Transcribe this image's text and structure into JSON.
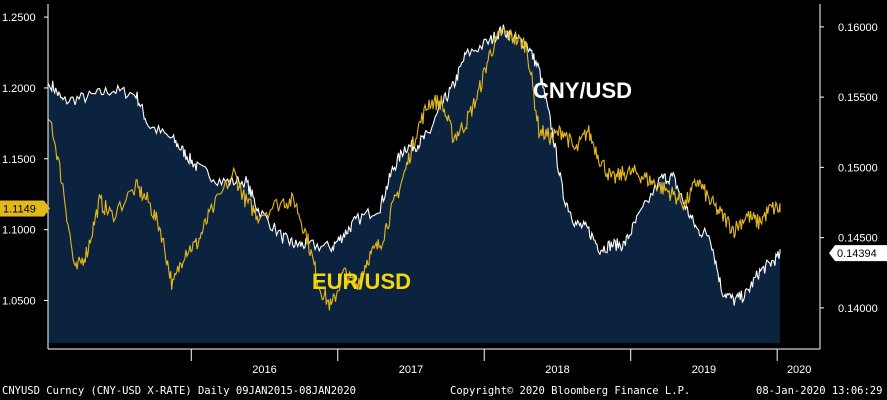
{
  "chart_data": {
    "type": "area",
    "title": "",
    "x_tick_labels": [
      "2016",
      "2017",
      "2018",
      "2019",
      "2020"
    ],
    "left_axis": {
      "ticks": [
        "1.2500",
        "1.2000",
        "1.1500",
        "1.1000",
        "1.0500"
      ],
      "ylim": [
        1.02,
        1.255
      ]
    },
    "right_axis": {
      "ticks": [
        "0.16000",
        "0.15500",
        "0.15000",
        "0.14500",
        "0.14000"
      ],
      "ylim": [
        0.1375,
        0.1612
      ]
    },
    "series": [
      {
        "name": "CNY/USD",
        "axis": "right",
        "style": "white line with navy fill",
        "color": "#ffffff",
        "fill": "#0c2340",
        "last_value_label": "0.14394",
        "points": [
          [
            "2015-01",
            0.156
          ],
          [
            "2015-02",
            0.1547
          ],
          [
            "2015-04",
            0.155
          ],
          [
            "2015-06",
            0.1555
          ],
          [
            "2015-08",
            0.1552
          ],
          [
            "2015-09",
            0.153
          ],
          [
            "2015-11",
            0.152
          ],
          [
            "2015-12",
            0.151
          ],
          [
            "2016-01",
            0.15
          ],
          [
            "2016-03",
            0.149
          ],
          [
            "2016-05",
            0.149
          ],
          [
            "2016-06",
            0.147
          ],
          [
            "2016-08",
            0.145
          ],
          [
            "2016-09",
            0.1445
          ],
          [
            "2016-10",
            0.1445
          ],
          [
            "2016-12",
            0.1443
          ],
          [
            "2017-01",
            0.1452
          ],
          [
            "2017-02",
            0.1462
          ],
          [
            "2017-04",
            0.1472
          ],
          [
            "2017-05",
            0.1498
          ],
          [
            "2017-06",
            0.1514
          ],
          [
            "2017-07",
            0.1516
          ],
          [
            "2017-08",
            0.1524
          ],
          [
            "2017-09",
            0.1544
          ],
          [
            "2017-10",
            0.1558
          ],
          [
            "2017-11",
            0.158
          ],
          [
            "2018-01",
            0.159
          ],
          [
            "2018-02",
            0.1598
          ],
          [
            "2018-03",
            0.1592
          ],
          [
            "2018-04",
            0.1588
          ],
          [
            "2018-05",
            0.157
          ],
          [
            "2018-06",
            0.153
          ],
          [
            "2018-07",
            0.148
          ],
          [
            "2018-08",
            0.146
          ],
          [
            "2018-09",
            0.1456
          ],
          [
            "2018-10",
            0.1442
          ],
          [
            "2018-11",
            0.1445
          ],
          [
            "2018-12",
            0.1445
          ],
          [
            "2019-01",
            0.1462
          ],
          [
            "2019-03",
            0.1492
          ],
          [
            "2019-04",
            0.1493
          ],
          [
            "2019-05",
            0.1472
          ],
          [
            "2019-06",
            0.1455
          ],
          [
            "2019-07",
            0.1452
          ],
          [
            "2019-08",
            0.1412
          ],
          [
            "2019-09",
            0.1405
          ],
          [
            "2019-10",
            0.141
          ],
          [
            "2019-11",
            0.1425
          ],
          [
            "2019-12",
            0.1432
          ],
          [
            "2020-01",
            0.1439
          ]
        ]
      },
      {
        "name": "EUR/USD",
        "axis": "left",
        "style": "yellow line",
        "color": "#e3b81a",
        "last_value_label": "1.1149",
        "points": [
          [
            "2015-01",
            1.178
          ],
          [
            "2015-02",
            1.131
          ],
          [
            "2015-03",
            1.07
          ],
          [
            "2015-04",
            1.085
          ],
          [
            "2015-05",
            1.12
          ],
          [
            "2015-06",
            1.11
          ],
          [
            "2015-08",
            1.13
          ],
          [
            "2015-09",
            1.12
          ],
          [
            "2015-10",
            1.1
          ],
          [
            "2015-11",
            1.06
          ],
          [
            "2015-12",
            1.085
          ],
          [
            "2016-01",
            1.09
          ],
          [
            "2016-02",
            1.11
          ],
          [
            "2016-04",
            1.14
          ],
          [
            "2016-05",
            1.12
          ],
          [
            "2016-06",
            1.11
          ],
          [
            "2016-08",
            1.12
          ],
          [
            "2016-09",
            1.12
          ],
          [
            "2016-10",
            1.095
          ],
          [
            "2016-11",
            1.06
          ],
          [
            "2016-12",
            1.045
          ],
          [
            "2017-01",
            1.07
          ],
          [
            "2017-02",
            1.06
          ],
          [
            "2017-03",
            1.08
          ],
          [
            "2017-04",
            1.09
          ],
          [
            "2017-05",
            1.115
          ],
          [
            "2017-06",
            1.14
          ],
          [
            "2017-07",
            1.17
          ],
          [
            "2017-08",
            1.19
          ],
          [
            "2017-09",
            1.19
          ],
          [
            "2017-10",
            1.165
          ],
          [
            "2017-11",
            1.175
          ],
          [
            "2017-12",
            1.195
          ],
          [
            "2018-01",
            1.225
          ],
          [
            "2018-02",
            1.24
          ],
          [
            "2018-03",
            1.235
          ],
          [
            "2018-04",
            1.23
          ],
          [
            "2018-05",
            1.17
          ],
          [
            "2018-06",
            1.165
          ],
          [
            "2018-07",
            1.17
          ],
          [
            "2018-08",
            1.155
          ],
          [
            "2018-09",
            1.17
          ],
          [
            "2018-10",
            1.15
          ],
          [
            "2018-11",
            1.135
          ],
          [
            "2018-12",
            1.14
          ],
          [
            "2019-01",
            1.14
          ],
          [
            "2019-02",
            1.135
          ],
          [
            "2019-03",
            1.13
          ],
          [
            "2019-04",
            1.125
          ],
          [
            "2019-05",
            1.118
          ],
          [
            "2019-06",
            1.135
          ],
          [
            "2019-07",
            1.12
          ],
          [
            "2019-08",
            1.11
          ],
          [
            "2019-09",
            1.1
          ],
          [
            "2019-10",
            1.11
          ],
          [
            "2019-11",
            1.105
          ],
          [
            "2019-12",
            1.115
          ],
          [
            "2020-01",
            1.1149
          ]
        ]
      }
    ],
    "annotations": [
      {
        "text": "CNY/USD",
        "color": "#ffffff"
      },
      {
        "text": "EUR/USD",
        "color": "#f5d60a"
      }
    ],
    "grid": false,
    "legend": "none"
  },
  "footer": {
    "ticker": "CNYUSD Curncy (CNY-USD X-RATE)  Daily 09JAN2015-08JAN2020",
    "copyright": "Copyright© 2020 Bloomberg Finance L.P.",
    "timestamp": "08-Jan-2020 13:06:29"
  }
}
